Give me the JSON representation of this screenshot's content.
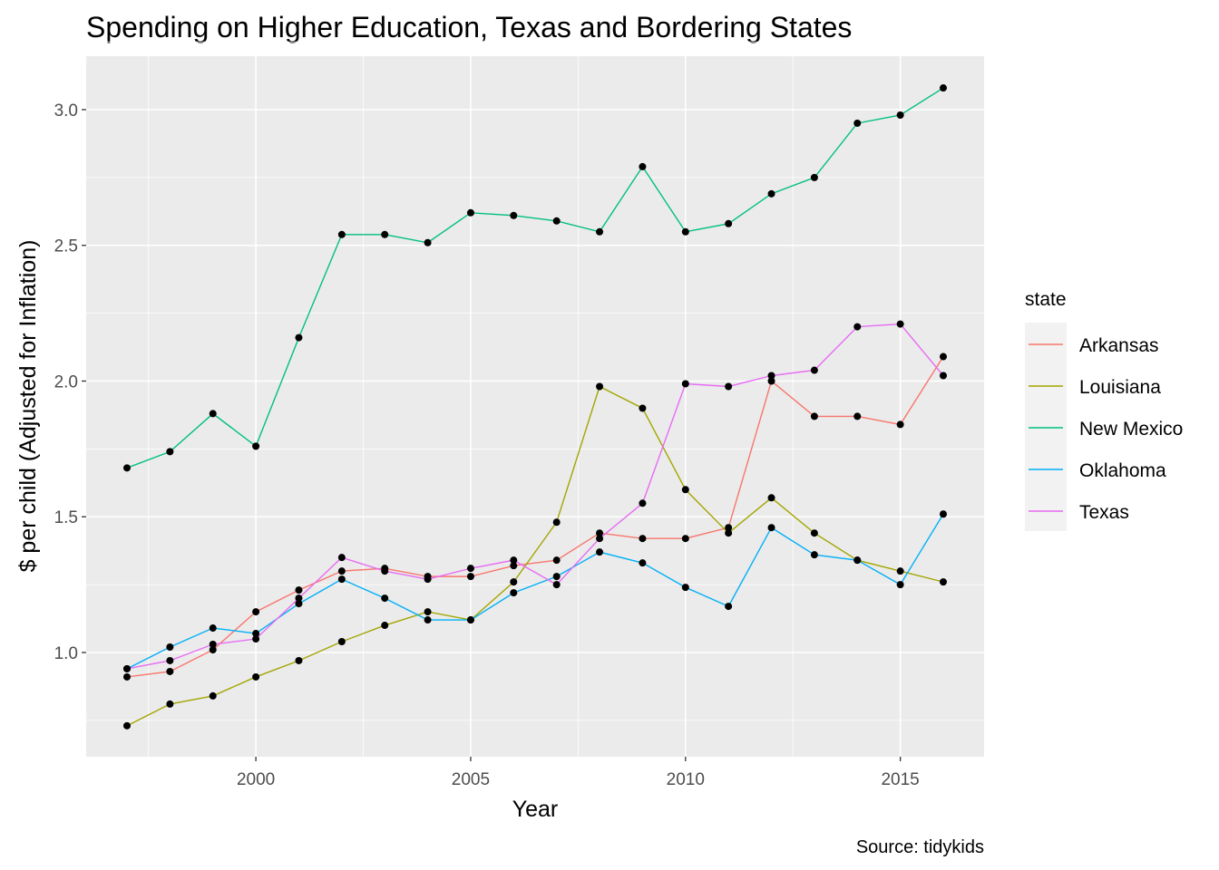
{
  "chart_data": {
    "type": "line",
    "title": "Spending on Higher Education, Texas and Bordering States",
    "xlabel": "Year",
    "ylabel": "$ per child (Adjusted for Inflation)",
    "caption": "Source: tidykids",
    "legend_title": "state",
    "legend_position": "right",
    "grid": true,
    "xlim": [
      1996.05,
      2016.95
    ],
    "ylim": [
      0.616,
      3.197
    ],
    "x_ticks": [
      2000,
      2005,
      2010,
      2015
    ],
    "x_tick_labels": [
      "2000",
      "2005",
      "2010",
      "2015"
    ],
    "y_ticks": [
      1.0,
      1.5,
      2.0,
      2.5,
      3.0
    ],
    "y_tick_labels": [
      "1.0",
      "1.5",
      "2.0",
      "2.5",
      "3.0"
    ],
    "x": [
      1997,
      1998,
      1999,
      2000,
      2001,
      2002,
      2003,
      2004,
      2005,
      2006,
      2007,
      2008,
      2009,
      2010,
      2011,
      2012,
      2013,
      2014,
      2015,
      2016
    ],
    "series": [
      {
        "name": "Arkansas",
        "color": "#F8766D",
        "values": [
          0.91,
          0.93,
          1.01,
          1.15,
          1.23,
          1.3,
          1.31,
          1.28,
          1.28,
          1.32,
          1.34,
          1.44,
          1.42,
          1.42,
          1.46,
          2.0,
          1.87,
          1.87,
          1.84,
          2.09
        ]
      },
      {
        "name": "Louisiana",
        "color": "#A3A500",
        "values": [
          0.73,
          0.81,
          0.84,
          0.91,
          0.97,
          1.04,
          1.1,
          1.15,
          1.12,
          1.26,
          1.48,
          1.98,
          1.9,
          1.6,
          1.44,
          1.57,
          1.44,
          1.34,
          1.3,
          1.26
        ]
      },
      {
        "name": "New Mexico",
        "color": "#00BF7D",
        "values": [
          1.68,
          1.74,
          1.88,
          1.76,
          2.16,
          2.54,
          2.54,
          2.51,
          2.62,
          2.61,
          2.59,
          2.55,
          2.79,
          2.55,
          2.58,
          2.69,
          2.75,
          2.95,
          2.98,
          3.08
        ]
      },
      {
        "name": "Oklahoma",
        "color": "#00B0F6",
        "values": [
          0.94,
          1.02,
          1.09,
          1.07,
          1.18,
          1.27,
          1.2,
          1.12,
          1.12,
          1.22,
          1.28,
          1.37,
          1.33,
          1.24,
          1.17,
          1.46,
          1.36,
          1.34,
          1.25,
          1.51
        ]
      },
      {
        "name": "Texas",
        "color": "#E76BF3",
        "values": [
          0.94,
          0.97,
          1.03,
          1.05,
          1.2,
          1.35,
          1.3,
          1.27,
          1.31,
          1.34,
          1.25,
          1.42,
          1.55,
          1.99,
          1.98,
          2.02,
          2.04,
          2.2,
          2.21,
          2.02
        ]
      }
    ]
  }
}
